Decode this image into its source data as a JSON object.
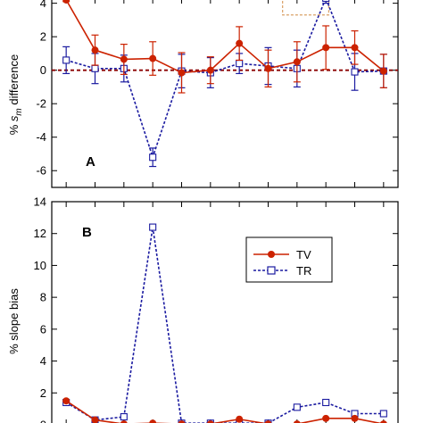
{
  "colors": {
    "tv": "#cc2200",
    "tr": "#1a1aa0",
    "zero_line": "#8b0000",
    "highlight_box": "#d9a066",
    "axis": "#000000"
  },
  "chart_data": [
    {
      "type": "line",
      "panel_label": "A",
      "ylabel_prefix": "% ",
      "ylabel_symbol": "s",
      "ylabel_subscript": "m",
      "ylabel_suffix": " difference",
      "x": [
        1,
        2,
        3,
        4,
        5,
        6,
        7,
        8,
        9,
        10,
        11,
        12
      ],
      "xlim": [
        0.5,
        12.5
      ],
      "ylim": [
        -7,
        4.3
      ],
      "yticks": [
        "4",
        "2",
        "0",
        "-2",
        "-4",
        "-6"
      ],
      "ytick_values": [
        4,
        2,
        0,
        -2,
        -4,
        -6
      ],
      "zero_line": true,
      "highlight_box": {
        "x": [
          8.5,
          10.1
        ],
        "y": [
          3.3,
          4.3
        ]
      },
      "series": [
        {
          "name": "TV",
          "values": [
            4.2,
            1.2,
            0.65,
            0.7,
            -0.15,
            0.0,
            1.6,
            0.1,
            0.5,
            1.35,
            1.35,
            -0.05
          ],
          "err": [
            0.1,
            0.9,
            0.9,
            1.0,
            1.2,
            0.8,
            1.0,
            1.1,
            1.2,
            1.3,
            1.0,
            1.0
          ]
        },
        {
          "name": "TR",
          "values": [
            0.6,
            0.1,
            0.1,
            -5.2,
            -0.05,
            -0.15,
            0.4,
            0.25,
            0.1,
            4.3,
            -0.1,
            -0.05
          ],
          "err": [
            0.8,
            0.9,
            0.8,
            0.55,
            1.0,
            0.9,
            0.6,
            1.1,
            1.1,
            0.3,
            1.1,
            1.0
          ]
        }
      ]
    },
    {
      "type": "line",
      "panel_label": "B",
      "ylabel": "% slope bias",
      "x": [
        1,
        2,
        3,
        4,
        5,
        6,
        7,
        8,
        9,
        10,
        11,
        12
      ],
      "xlim": [
        0.5,
        12.5
      ],
      "ylim": [
        0,
        14
      ],
      "yticks": [
        "14",
        "12",
        "10",
        "8",
        "6",
        "4",
        "2",
        "0"
      ],
      "ytick_values": [
        14,
        12,
        10,
        8,
        6,
        4,
        2,
        0
      ],
      "legend": {
        "position": "top-right",
        "entries": [
          "TV",
          "TR"
        ]
      },
      "series": [
        {
          "name": "TV",
          "values": [
            1.5,
            0.3,
            0.05,
            0.1,
            0.05,
            0.05,
            0.35,
            0.05,
            0.05,
            0.4,
            0.4,
            0.05
          ]
        },
        {
          "name": "TR",
          "values": [
            1.4,
            0.3,
            0.5,
            12.4,
            0.1,
            0.1,
            0.1,
            0.1,
            1.1,
            1.4,
            0.7,
            0.7
          ]
        }
      ]
    }
  ]
}
